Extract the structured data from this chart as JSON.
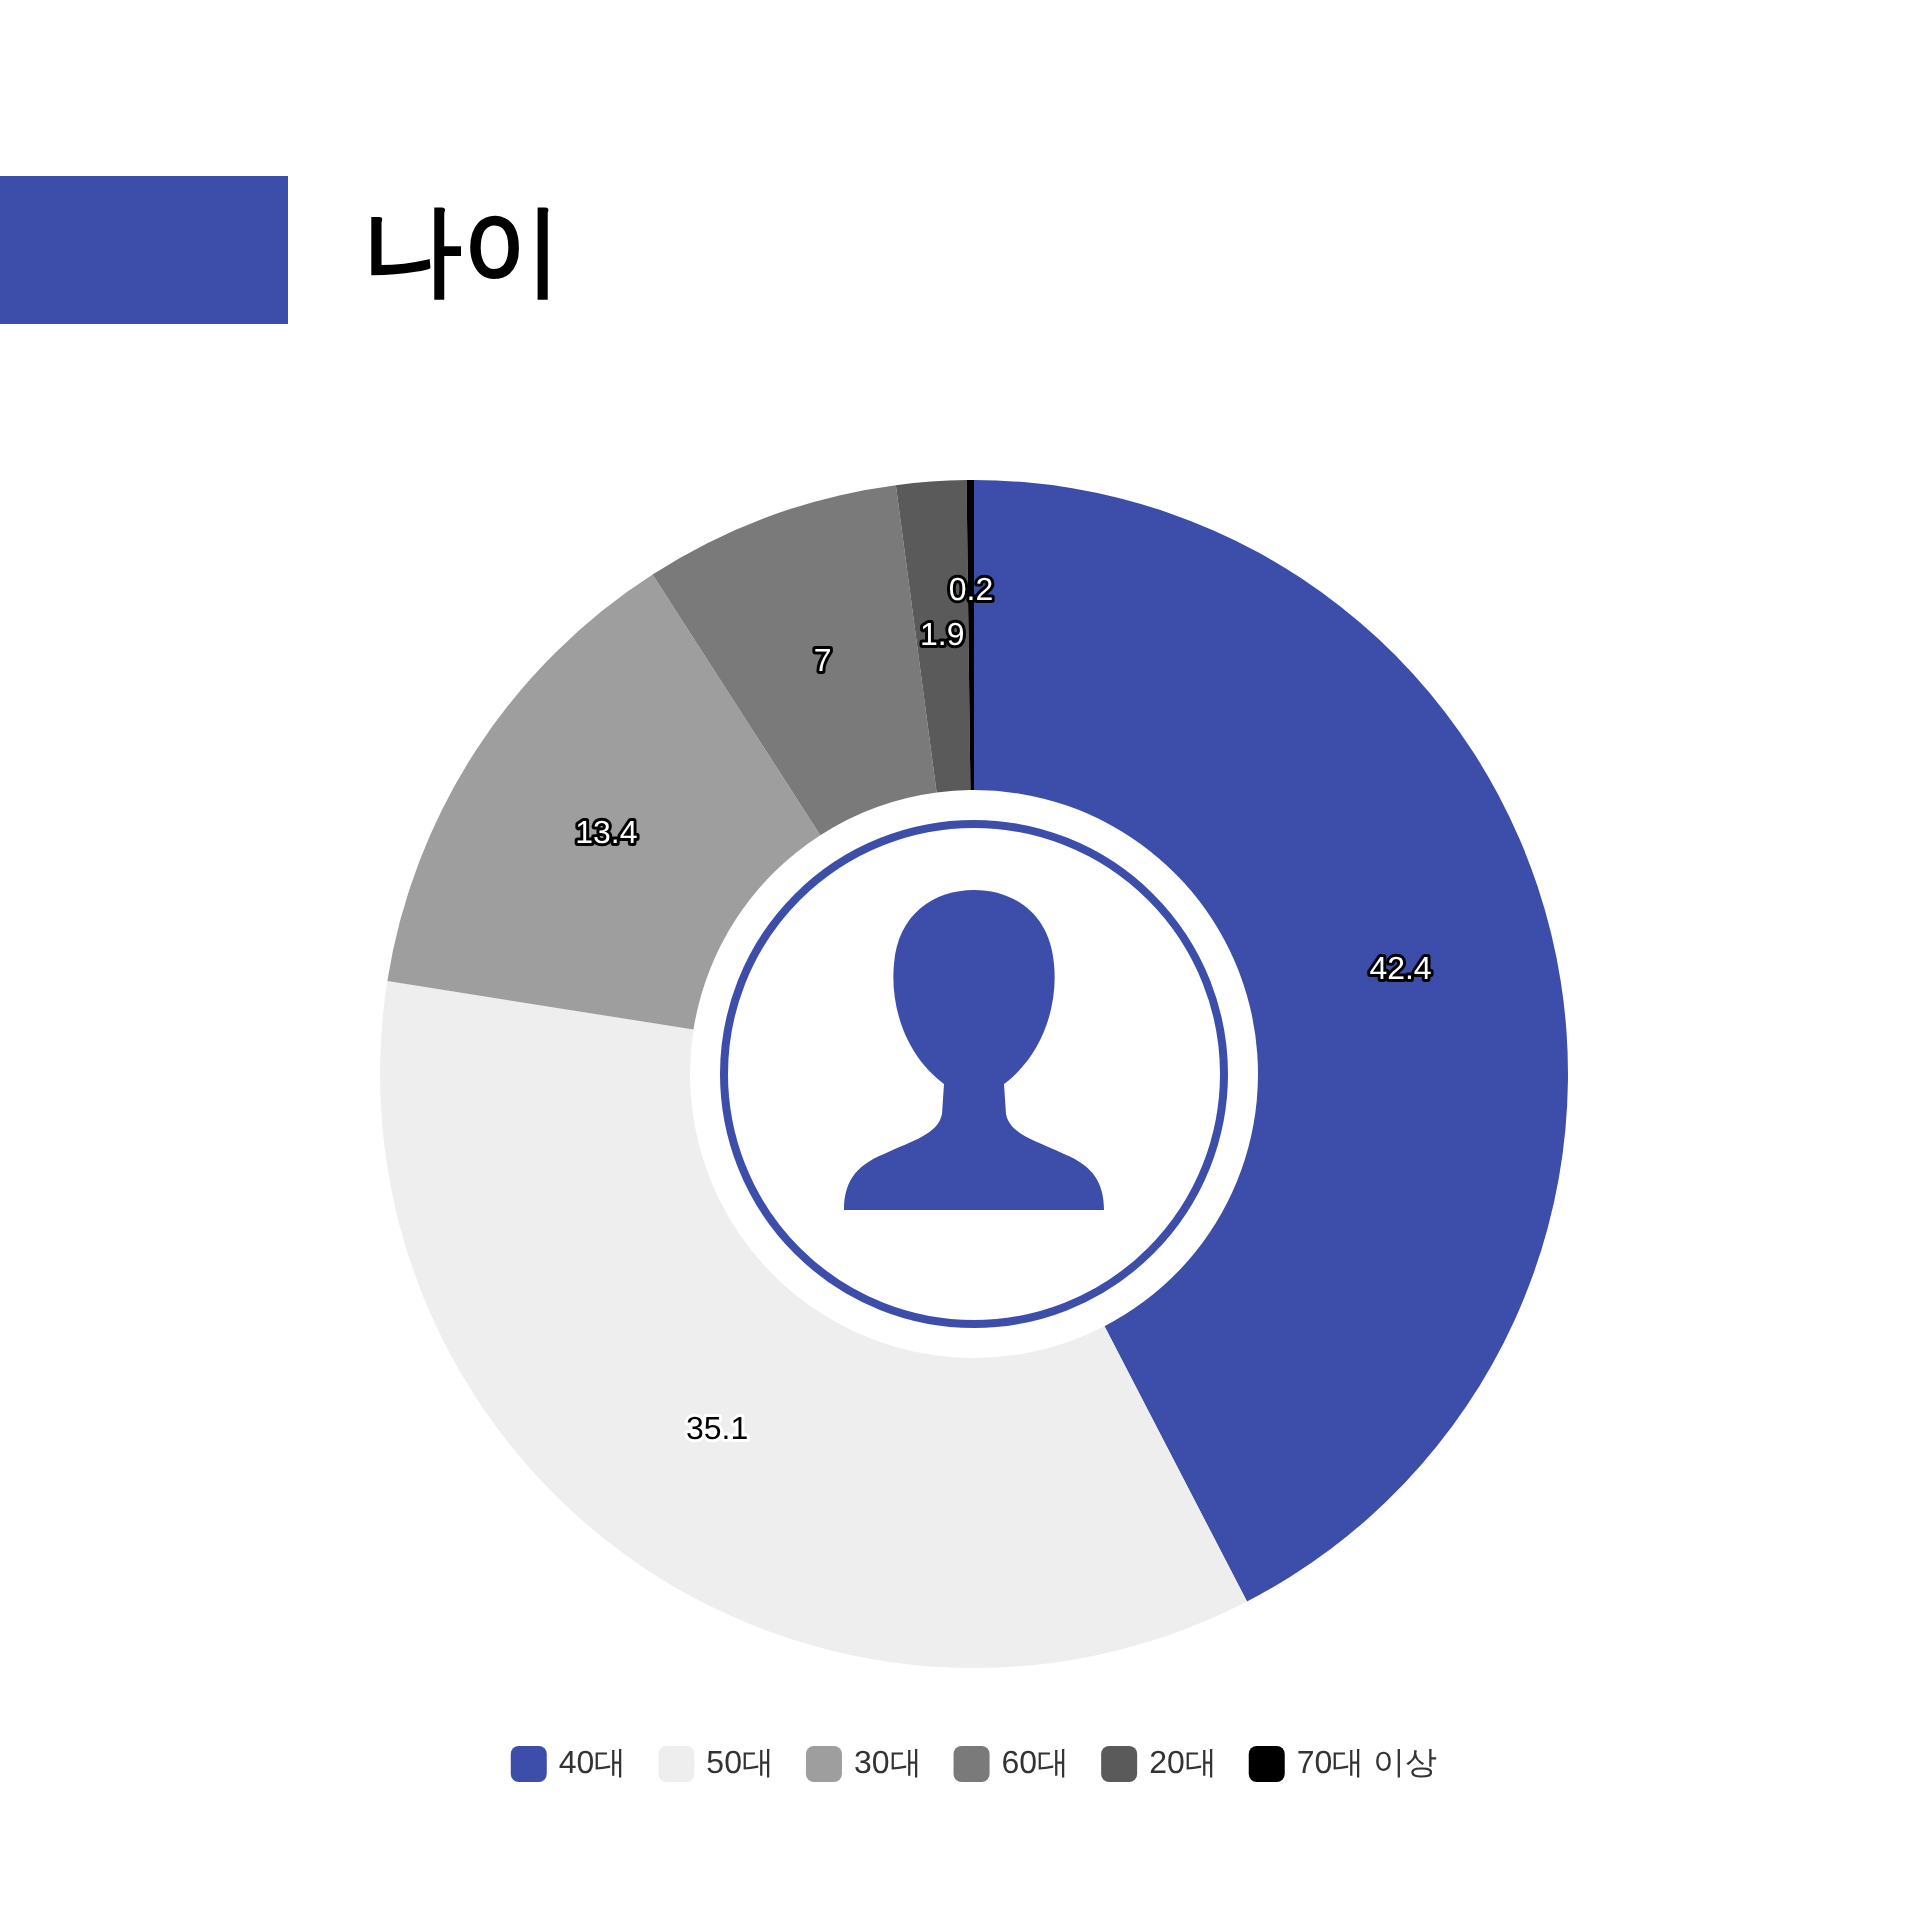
{
  "chart_data": {
    "type": "donut",
    "title": "나이",
    "categories": [
      "40대",
      "50대",
      "30대",
      "60대",
      "20대",
      "70대 이상"
    ],
    "values": [
      42.4,
      35.1,
      13.4,
      7,
      1.9,
      0.2
    ],
    "colors": [
      "#3c4ea9",
      "#eeeeee",
      "#9e9e9e",
      "#7a7a7a",
      "#5a5a5a",
      "#000000"
    ],
    "data_labels": true,
    "legend": "bottom"
  }
}
